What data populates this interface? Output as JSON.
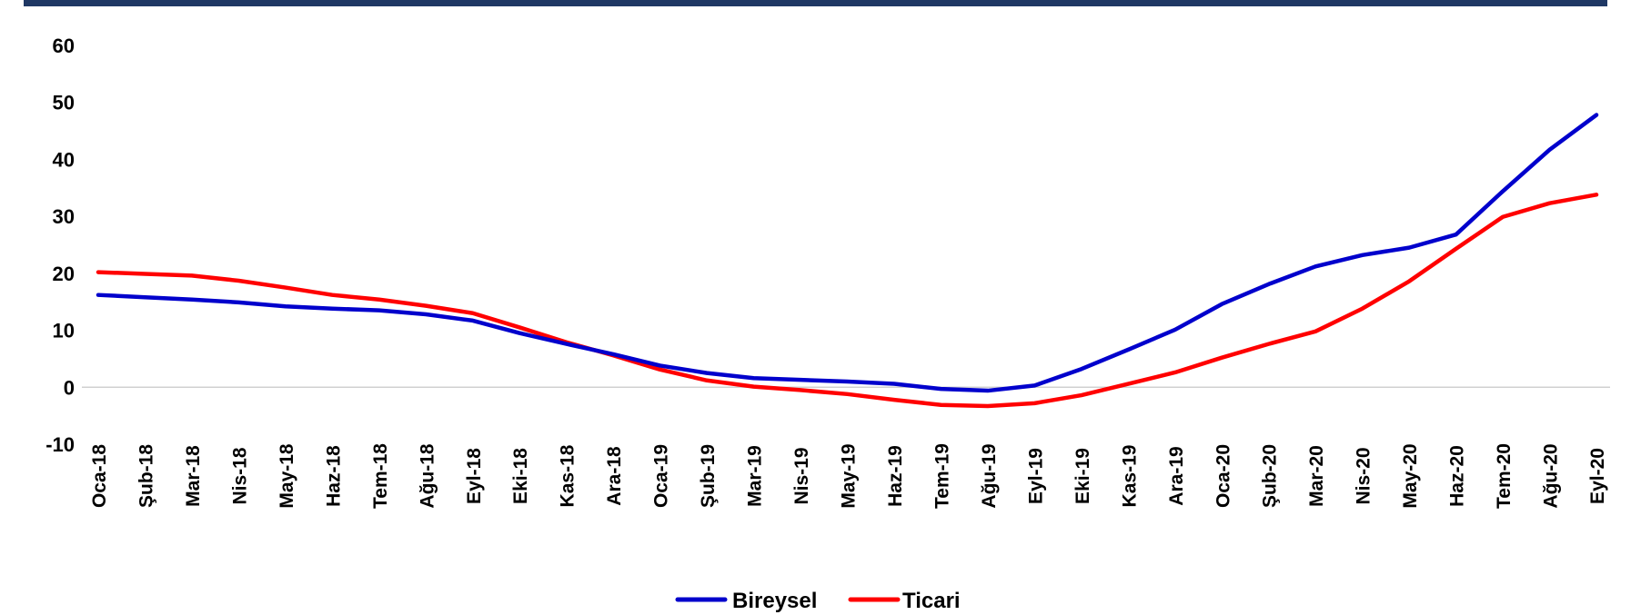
{
  "colors": {
    "header_bar": "#1f3864",
    "baseline": "#d0d0d0",
    "bireysel": "#0000cc",
    "ticari": "#ff0000"
  },
  "chart_data": {
    "type": "line",
    "title": "",
    "xlabel": "",
    "ylabel": "",
    "ylim": [
      -10,
      60
    ],
    "yticks": [
      -10,
      0,
      10,
      20,
      30,
      40,
      50,
      60
    ],
    "grid": false,
    "legend_position": "bottom",
    "categories": [
      "Oca-18",
      "Şub-18",
      "Mar-18",
      "Nis-18",
      "May-18",
      "Haz-18",
      "Tem-18",
      "Ağu-18",
      "Eyl-18",
      "Eki-18",
      "Kas-18",
      "Ara-18",
      "Oca-19",
      "Şub-19",
      "Mar-19",
      "Nis-19",
      "May-19",
      "Haz-19",
      "Tem-19",
      "Ağu-19",
      "Eyl-19",
      "Eki-19",
      "Kas-19",
      "Ara-19",
      "Oca-20",
      "Şub-20",
      "Mar-20",
      "Nis-20",
      "May-20",
      "Haz-20",
      "Tem-20",
      "Ağu-20",
      "Eyl-20"
    ],
    "series": [
      {
        "name": "Bireysel",
        "color": "#0000cc",
        "values": [
          16.2,
          15.8,
          15.4,
          14.9,
          14.2,
          13.8,
          13.5,
          12.8,
          11.7,
          9.5,
          7.6,
          5.8,
          3.8,
          2.5,
          1.6,
          1.3,
          1.0,
          0.6,
          -0.3,
          -0.6,
          0.3,
          3.2,
          6.6,
          10.1,
          14.6,
          18.1,
          21.2,
          23.2,
          24.5,
          26.8,
          34.4,
          41.7,
          47.8
        ]
      },
      {
        "name": "Ticari",
        "color": "#ff0000",
        "values": [
          20.2,
          19.9,
          19.6,
          18.7,
          17.5,
          16.2,
          15.4,
          14.3,
          13.0,
          10.5,
          7.9,
          5.6,
          3.1,
          1.2,
          0.1,
          -0.5,
          -1.2,
          -2.2,
          -3.1,
          -3.3,
          -2.8,
          -1.4,
          0.6,
          2.6,
          5.2,
          7.6,
          9.8,
          13.8,
          18.6,
          24.3,
          29.9,
          32.3,
          33.8
        ]
      }
    ]
  }
}
